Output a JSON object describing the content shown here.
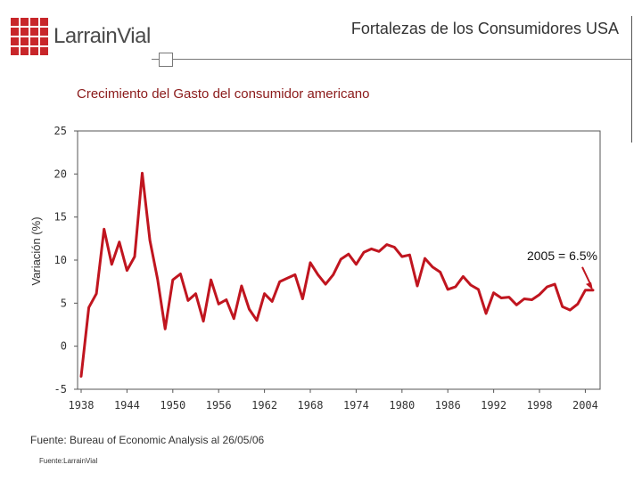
{
  "header": {
    "brand": "LarrainVial",
    "title": "Fortalezas de los Consumidores USA"
  },
  "colors": {
    "brand": "#c8262a",
    "series": "#c0151f",
    "axis": "#555555"
  },
  "chart_data": {
    "type": "line",
    "title": "Crecimiento del Gasto del consumidor americano",
    "ylabel": "Variación (%)",
    "xlabel": "",
    "ylim": [
      -5,
      25
    ],
    "xlim": [
      1938,
      2005
    ],
    "yticks": [
      25,
      20,
      15,
      10,
      5,
      0,
      -5
    ],
    "xticks": [
      1938,
      1944,
      1950,
      1956,
      1962,
      1968,
      1974,
      1980,
      1986,
      1992,
      1998,
      2004
    ],
    "grid": false,
    "series": [
      {
        "name": "",
        "x": [
          1938,
          1939,
          1940,
          1941,
          1942,
          1943,
          1944,
          1945,
          1946,
          1947,
          1948,
          1949,
          1950,
          1951,
          1952,
          1953,
          1954,
          1955,
          1956,
          1957,
          1958,
          1959,
          1960,
          1961,
          1962,
          1963,
          1964,
          1965,
          1966,
          1967,
          1968,
          1969,
          1970,
          1971,
          1972,
          1973,
          1974,
          1975,
          1976,
          1977,
          1978,
          1979,
          1980,
          1981,
          1982,
          1983,
          1984,
          1985,
          1986,
          1987,
          1988,
          1989,
          1990,
          1991,
          1992,
          1993,
          1994,
          1995,
          1996,
          1997,
          1998,
          1999,
          2000,
          2001,
          2002,
          2003,
          2004,
          2005
        ],
        "values": [
          -3.5,
          4.5,
          6.1,
          13.6,
          9.5,
          12.1,
          8.8,
          10.4,
          20.1,
          12.3,
          7.8,
          2.0,
          7.7,
          8.4,
          5.3,
          6.1,
          2.9,
          7.7,
          4.9,
          5.4,
          3.2,
          7.0,
          4.3,
          3.0,
          6.1,
          5.2,
          7.5,
          7.9,
          8.3,
          5.5,
          9.7,
          8.3,
          7.2,
          8.3,
          10.1,
          10.7,
          9.5,
          10.9,
          11.3,
          11.0,
          11.8,
          11.5,
          10.4,
          10.6,
          7.0,
          10.2,
          9.2,
          8.6,
          6.6,
          6.9,
          8.1,
          7.1,
          6.6,
          3.8,
          6.2,
          5.6,
          5.7,
          4.8,
          5.5,
          5.4,
          6.0,
          6.9,
          7.2,
          4.6,
          4.2,
          4.9,
          6.5,
          6.5
        ]
      }
    ],
    "annotation": {
      "text": "2005 = 6.5%",
      "x": 2005,
      "y": 6.5
    }
  },
  "source": "Fuente: Bureau of Economic Analysis al 26/05/06",
  "footer": "Fuente:LarrainVial"
}
